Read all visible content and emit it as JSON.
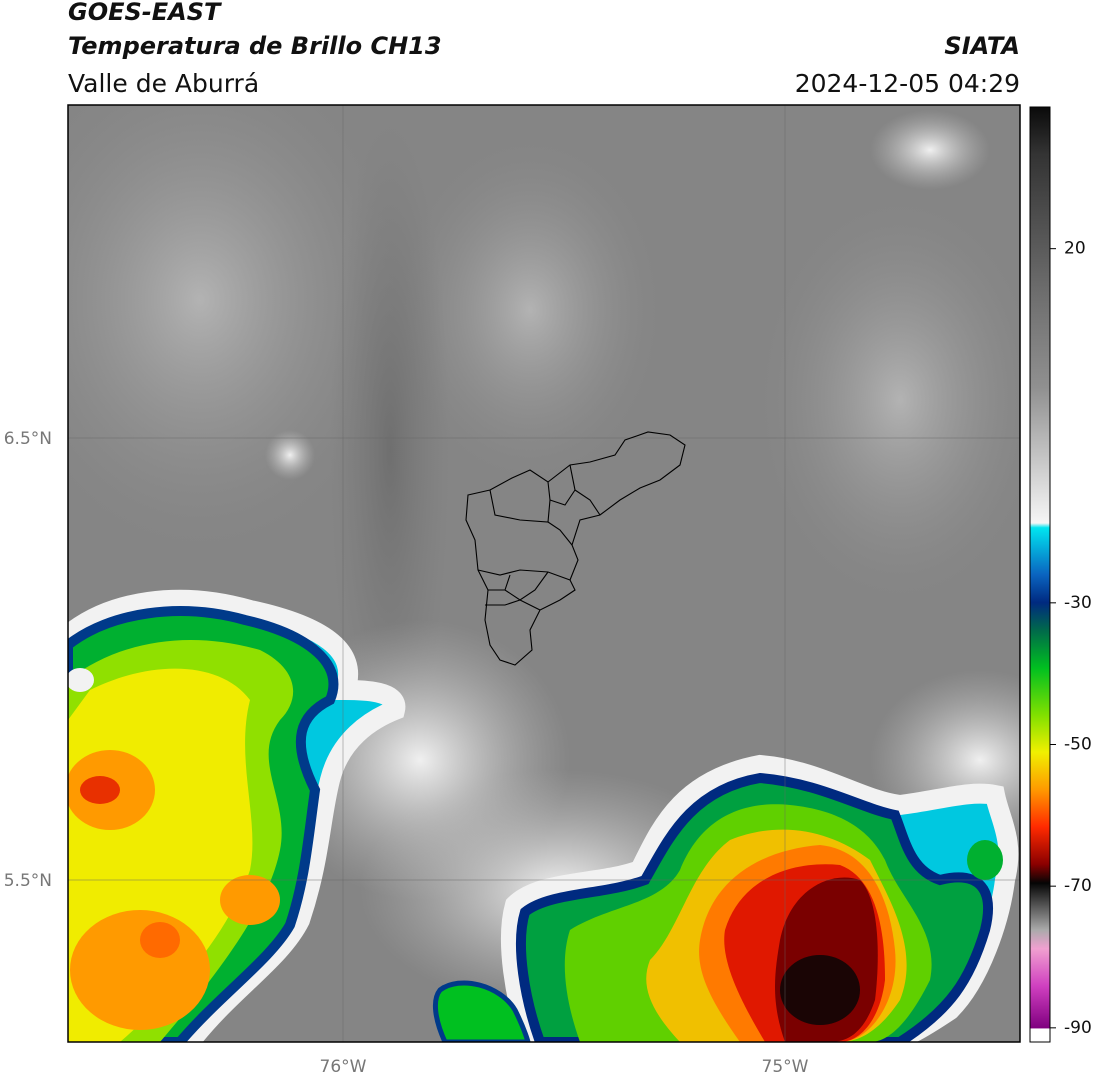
{
  "header": {
    "title": "GOES-EAST",
    "subtitle": "Temperatura de Brillo CH13",
    "region": "Valle de Aburrá",
    "source": "SIATA",
    "datetime": "2024-12-05 04:29"
  },
  "map": {
    "lat_labels": [
      "6.5°N",
      "5.5°N"
    ],
    "lon_labels": [
      "76°W",
      "75°W"
    ]
  },
  "colorbar": {
    "range": [
      -92,
      40
    ],
    "ticks": [
      20,
      -30,
      -50,
      -70,
      -90
    ]
  }
}
